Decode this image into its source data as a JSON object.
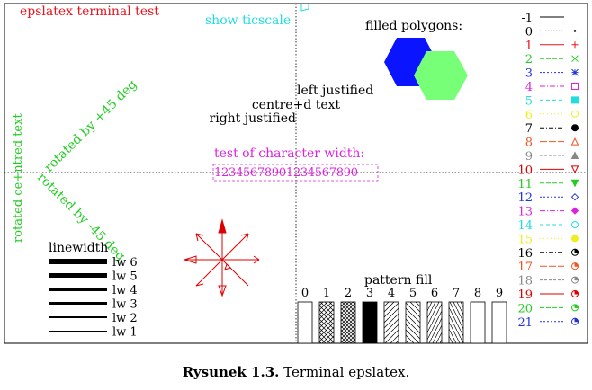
{
  "figure": {
    "terminal_title": "epslatex terminal test",
    "show_ticscale": "show ticscale",
    "filled_polygons": "filled polygons:",
    "left_justified": "left justified",
    "centred_text": "centre+d text",
    "right_justified": "right justified",
    "char_width_label": "test of character width:",
    "char_width_sample": "12345678901234567890",
    "rotated_centred": "rotated ce+ntred text",
    "rotated_plus45": "rotated by +45 deg",
    "rotated_minus45": "rotated by -45 deg",
    "linewidth_title": "linewidth",
    "linewidths": [
      "lw 6",
      "lw 5",
      "lw 4",
      "lw 3",
      "lw 2",
      "lw 1"
    ],
    "pattern_fill_title": "pattern fill",
    "pattern_numbers": [
      "0",
      "1",
      "2",
      "3",
      "4",
      "5",
      "6",
      "7",
      "8",
      "9"
    ],
    "legend_labels": [
      "-1",
      "0",
      "1",
      "2",
      "3",
      "4",
      "5",
      "6",
      "7",
      "8",
      "9",
      "10",
      "11",
      "12",
      "13",
      "14",
      "15",
      "16",
      "17",
      "18",
      "19",
      "20",
      "21"
    ],
    "legend_colors": [
      "#000000",
      "#000000",
      "#e8141e",
      "#22cc22",
      "#2233dd",
      "#dd22dd",
      "#22dddd",
      "#eeee22",
      "#000000",
      "#ee5522",
      "#888888",
      "#dd0000",
      "#22cc22",
      "#2233dd",
      "#dd22dd",
      "#22dddd",
      "#eeee22",
      "#000000",
      "#ee5522",
      "#888888",
      "#dd0000",
      "#22cc22",
      "#2233dd"
    ],
    "title_color": "#e8141e",
    "ticscale_color": "#22dddd",
    "char_width_color": "#dd22dd",
    "rotated_color": "#22cc22",
    "hexagon_blue": "#0a14ff",
    "hexagon_green": "#77ff77"
  },
  "caption": {
    "label": "Rysunek 1.3.",
    "text": "Terminal epslatex."
  }
}
